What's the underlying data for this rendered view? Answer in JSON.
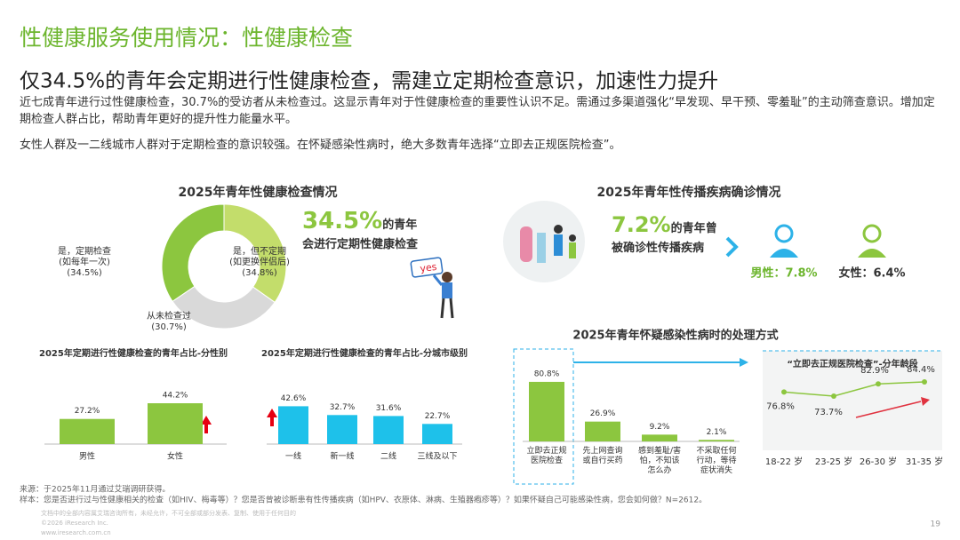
{
  "header": {
    "title": "性健康服务使用情况：性健康检查",
    "headline": "仅34.5%的青年会定期进行性健康检查，需建立定期检查意识，加速性力提升",
    "paragraphs": [
      "近七成青年进行过性健康检查，30.7%的受访者从未检查过。这显示青年对于性健康检查的重要性认识不足。需通过多渠道强化“早发现、早干预、零羞耻”的主动筛查意识。增加定期检查人群占比，帮助青年更好的提升性力能量水平。",
      "女性人群及一二线城市人群对于定期检查的意识较强。在怀疑感染性病时，绝大多数青年选择“立即去正规医院检查”。"
    ]
  },
  "chart_data": [
    {
      "type": "pie",
      "title": "2025年青年性健康检查情况",
      "categories": [
        "是，定期检查",
        "是，但不定期",
        "从未检查过"
      ],
      "notes": [
        "(如每年一次)",
        "(如更换伴侣后)",
        null
      ],
      "values": [
        34.5,
        34.8,
        30.7
      ],
      "value_labels": [
        "(34.5%)",
        "(34.8%)",
        "(30.7%)"
      ],
      "colors": [
        "#8cc63f",
        "#c3dd6b",
        "#d9d9d9"
      ],
      "callout": {
        "figure": "34.5%",
        "text": "的青年会进行定期性健康检查"
      },
      "sign": "yes"
    },
    {
      "type": "bar",
      "title": "2025年定期进行性健康检查的青年占比-分性别",
      "categories": [
        "男性",
        "女性"
      ],
      "values": [
        27.2,
        44.2
      ],
      "value_labels": [
        "27.2%",
        "44.2%"
      ],
      "color": "#8cc63f"
    },
    {
      "type": "bar",
      "title": "2025年定期进行性健康检查的青年占比-分城市级别",
      "categories": [
        "一线",
        "新一线",
        "二线",
        "三线及以下"
      ],
      "values": [
        42.6,
        32.7,
        31.6,
        22.7
      ],
      "value_labels": [
        "42.6%",
        "32.7%",
        "31.6%",
        "22.7%"
      ],
      "color": "#1ec1ea"
    },
    {
      "type": "bar",
      "title": "2025年青年怀疑感染性病时的处理方式",
      "categories": [
        "立即去正规医院检查",
        "先上网查询或自行买药",
        "感到羞耻/害怕，不知该怎么办",
        "不采取任何行动，等待症状消失"
      ],
      "values": [
        80.8,
        26.9,
        9.2,
        2.1
      ],
      "value_labels": [
        "80.8%",
        "26.9%",
        "9.2%",
        "2.1%"
      ],
      "color": "#8cc63f"
    },
    {
      "type": "line",
      "title": "“立即去正规医院检查”-分年龄段",
      "categories": [
        "18-22 岁",
        "23-25 岁",
        "26-30 岁",
        "31-35 岁"
      ],
      "values": [
        76.8,
        73.7,
        82.9,
        84.4
      ],
      "value_labels": [
        "76.8%",
        "73.7%",
        "82.9%",
        "84.4%"
      ],
      "color": "#8cc63f"
    }
  ],
  "diagnosis": {
    "title": "2025年青年性传播疾病确诊情况",
    "figure": "7.2%",
    "text": "的青年曾被确诊性传播疾病",
    "male": "男性：7.8%",
    "female": "女性：6.4%"
  },
  "footer": {
    "source": "来源：于2025年11月通过艾瑞调研获得。",
    "sample": "样本：您是否进行过与性健康相关的检查（如HIV、梅毒等）？您是否曾被诊断患有性传播疾病（如HPV、衣原体、淋病、生殖器疱疹等）？如果怀疑自己可能感染性病，您会如何做？N=2612。",
    "disclaimer": "文档中的全部内容属艾瑞咨询所有，未经允许，不可全部或部分发表、复制、使用于任何目的",
    "copyright": "©2026 iResearch Inc.",
    "website": "www.iresearch.com.cn",
    "page": "19"
  }
}
